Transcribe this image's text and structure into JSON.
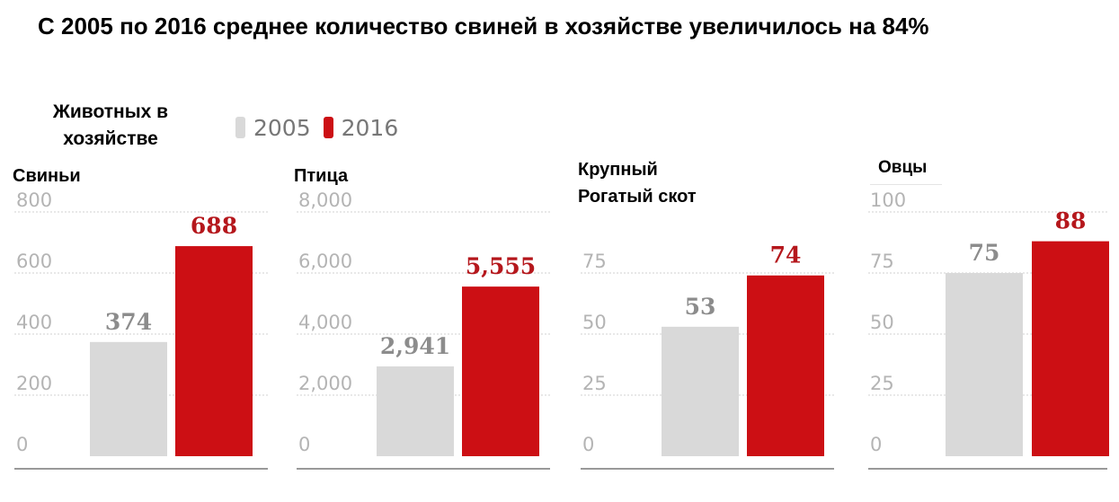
{
  "title": "С 2005 по 2016 среднее количество свиней в хозяйстве увеличилось на 84%",
  "unit_label": [
    "Животных в",
    "хозяйстве"
  ],
  "legend": [
    {
      "label": "2005",
      "color": "#d9d9d9"
    },
    {
      "label": "2016",
      "color": "#cc0f14"
    }
  ],
  "colors": {
    "bar_2005": "#d9d9d9",
    "bar_2016": "#cc0f14",
    "label_2005": "#8c8c8c",
    "label_2016": "#b5171c",
    "tick": "#b4b4b4",
    "grid": "#e0e0e0",
    "axis": "#999999"
  },
  "chart_data": [
    {
      "type": "bar",
      "title": "Свиньи",
      "title_lines": [
        "Свиньи"
      ],
      "categories": [
        "2005",
        "2016"
      ],
      "values": [
        374,
        688
      ],
      "value_labels": [
        "374",
        "688"
      ],
      "ylim": [
        0,
        800
      ],
      "yticks": [
        0,
        200,
        400,
        600,
        800
      ],
      "ytick_labels": [
        "0",
        "200",
        "400",
        "600",
        "800"
      ],
      "grid": true
    },
    {
      "type": "bar",
      "title": "Птица",
      "title_lines": [
        "Птица"
      ],
      "categories": [
        "2005",
        "2016"
      ],
      "values": [
        2941,
        5555
      ],
      "value_labels": [
        "2,941",
        "5,555"
      ],
      "ylim": [
        0,
        8000
      ],
      "yticks": [
        0,
        2000,
        4000,
        6000,
        8000
      ],
      "ytick_labels": [
        "0",
        "2,000",
        "4,000",
        "6,000",
        "8,000"
      ],
      "grid": true
    },
    {
      "type": "bar",
      "title": "Крупный Рогатый скот",
      "title_lines": [
        "Крупный",
        "Рогатый скот"
      ],
      "categories": [
        "2005",
        "2016"
      ],
      "values": [
        53,
        74
      ],
      "value_labels": [
        "53",
        "74"
      ],
      "ylim": [
        0,
        100
      ],
      "yticks": [
        0,
        25,
        50,
        75
      ],
      "ytick_labels": [
        "0",
        "25",
        "50",
        "75"
      ],
      "grid": true
    },
    {
      "type": "bar",
      "title": "Овцы",
      "title_lines": [
        "Овцы"
      ],
      "categories": [
        "2005",
        "2016"
      ],
      "values": [
        75,
        88
      ],
      "value_labels": [
        "75",
        "88"
      ],
      "ylim": [
        0,
        100
      ],
      "yticks": [
        0,
        25,
        50,
        75,
        100
      ],
      "ytick_labels": [
        "0",
        "25",
        "50",
        "75",
        "100"
      ],
      "grid": true
    }
  ]
}
